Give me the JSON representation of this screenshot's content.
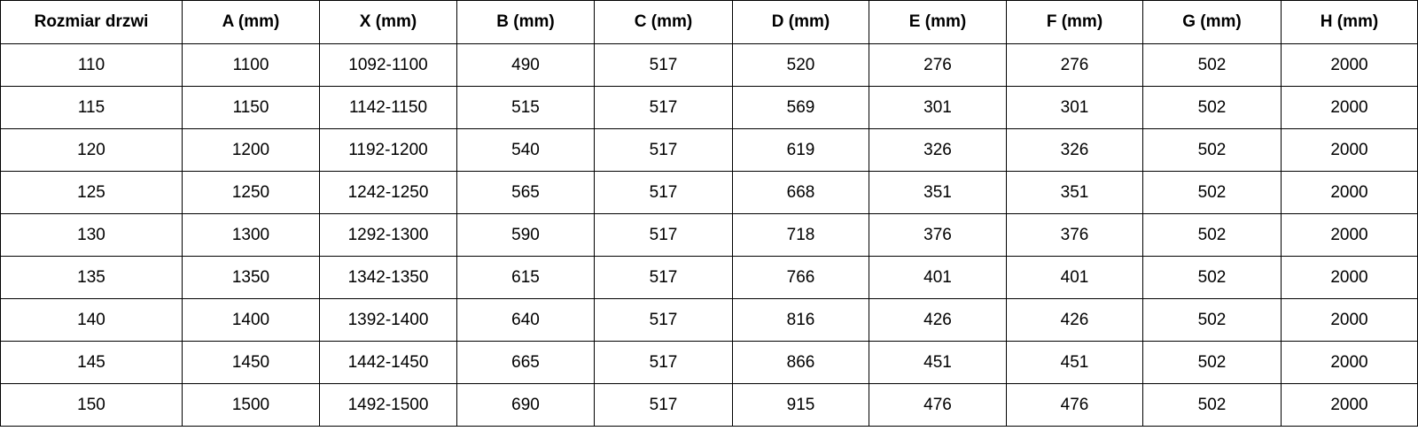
{
  "table": {
    "headers": [
      "Rozmiar drzwi",
      "A (mm)",
      "X (mm)",
      "B (mm)",
      "C (mm)",
      "D (mm)",
      "E (mm)",
      "F (mm)",
      "G (mm)",
      "H (mm)"
    ],
    "rows": [
      [
        "110",
        "1100",
        "1092-1100",
        "490",
        "517",
        "520",
        "276",
        "276",
        "502",
        "2000"
      ],
      [
        "115",
        "1150",
        "1142-1150",
        "515",
        "517",
        "569",
        "301",
        "301",
        "502",
        "2000"
      ],
      [
        "120",
        "1200",
        "1192-1200",
        "540",
        "517",
        "619",
        "326",
        "326",
        "502",
        "2000"
      ],
      [
        "125",
        "1250",
        "1242-1250",
        "565",
        "517",
        "668",
        "351",
        "351",
        "502",
        "2000"
      ],
      [
        "130",
        "1300",
        "1292-1300",
        "590",
        "517",
        "718",
        "376",
        "376",
        "502",
        "2000"
      ],
      [
        "135",
        "1350",
        "1342-1350",
        "615",
        "517",
        "766",
        "401",
        "401",
        "502",
        "2000"
      ],
      [
        "140",
        "1400",
        "1392-1400",
        "640",
        "517",
        "816",
        "426",
        "426",
        "502",
        "2000"
      ],
      [
        "145",
        "1450",
        "1442-1450",
        "665",
        "517",
        "866",
        "451",
        "451",
        "502",
        "2000"
      ],
      [
        "150",
        "1500",
        "1492-1500",
        "690",
        "517",
        "915",
        "476",
        "476",
        "502",
        "2000"
      ]
    ]
  }
}
